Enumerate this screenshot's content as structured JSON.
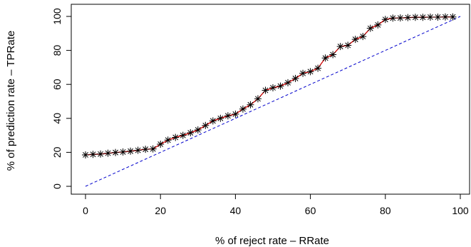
{
  "chart_data": {
    "type": "line",
    "title": "",
    "xlabel": "% of reject rate – RRate",
    "ylabel": "% of prediction rate – TPRate",
    "xlim": [
      -2,
      102
    ],
    "ylim": [
      -3,
      103
    ],
    "xticks": [
      0,
      20,
      40,
      60,
      80,
      100
    ],
    "yticks": [
      0,
      20,
      40,
      60,
      80,
      100
    ],
    "grid": false,
    "series": [
      {
        "line_color": "#cc0000",
        "marker": "asterisk",
        "marker_color": "#000000",
        "x": [
          0,
          2,
          4,
          6,
          8,
          10,
          12,
          14,
          16,
          18,
          20,
          22,
          24,
          26,
          28,
          30,
          32,
          34,
          36,
          38,
          40,
          42,
          44,
          46,
          48,
          50,
          52,
          54,
          56,
          58,
          60,
          62,
          64,
          66,
          68,
          70,
          72,
          74,
          76,
          78,
          80,
          82,
          84,
          86,
          88,
          90,
          92,
          94,
          96,
          98
        ],
        "y": [
          18.5,
          18.8,
          19,
          19.5,
          19.9,
          20.2,
          20.7,
          21.2,
          21.8,
          22,
          24.8,
          27.2,
          28.8,
          30,
          31.5,
          33.2,
          35.8,
          38.5,
          40,
          41.5,
          42.5,
          45.5,
          48,
          51.5,
          56.5,
          58,
          59,
          61,
          63.5,
          66.5,
          67.5,
          69.5,
          75.5,
          77.5,
          82.3,
          83,
          86.5,
          88.2,
          93,
          95,
          98.2,
          99,
          99.1,
          99.3,
          99.5,
          99.5,
          99.6,
          99.6,
          99.7,
          99.7
        ]
      },
      {
        "line_color": "#0000cc",
        "line_style": "dashed",
        "x": [
          0,
          100
        ],
        "y": [
          0,
          100
        ]
      }
    ]
  }
}
